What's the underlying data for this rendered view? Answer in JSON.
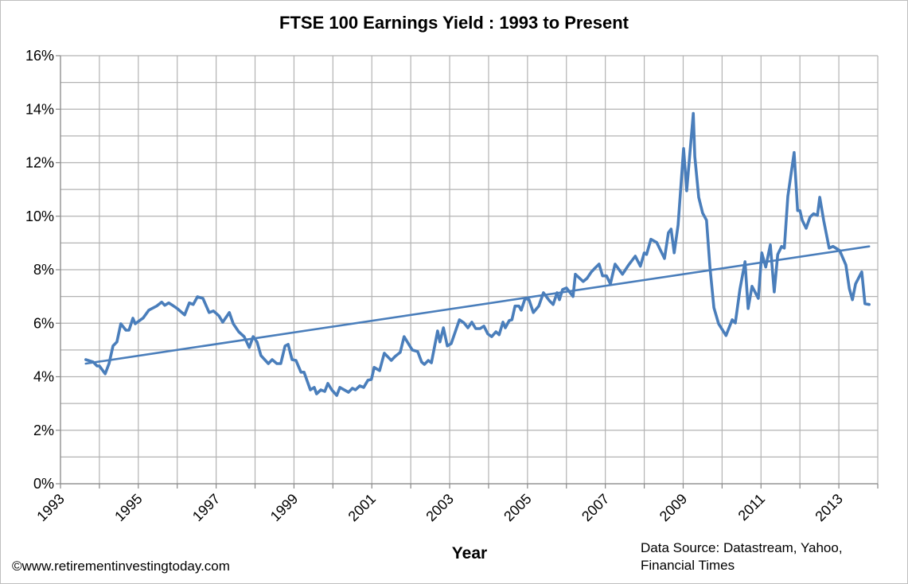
{
  "chart_data": {
    "type": "line",
    "title": "FTSE 100 Earnings Yield : 1993 to Present",
    "xlabel": "Year",
    "ylabel": "",
    "xlim": [
      1993,
      2014
    ],
    "ylim": [
      0,
      16
    ],
    "x_tick_labels": [
      "1993",
      "1995",
      "1997",
      "1999",
      "2001",
      "2003",
      "2005",
      "2007",
      "2009",
      "2011",
      "2013"
    ],
    "y_tick_labels": [
      "0%",
      "2%",
      "4%",
      "6%",
      "8%",
      "10%",
      "12%",
      "14%",
      "16%"
    ],
    "grid": true,
    "legend": "none",
    "series": [
      {
        "color": "#4a7ebb",
        "x": [
          1993.65,
          1993.84,
          1993.94,
          1994.0,
          1994.15,
          1994.25,
          1994.35,
          1994.45,
          1994.55,
          1994.68,
          1994.76,
          1994.86,
          1994.92,
          1995.06,
          1995.12,
          1995.27,
          1995.47,
          1995.6,
          1995.68,
          1995.78,
          1995.88,
          1996.0,
          1996.19,
          1996.31,
          1996.41,
          1996.52,
          1996.66,
          1996.82,
          1996.93,
          1997.07,
          1997.17,
          1997.34,
          1997.44,
          1997.58,
          1997.72,
          1997.85,
          1997.95,
          1998.05,
          1998.15,
          1998.34,
          1998.44,
          1998.56,
          1998.66,
          1998.77,
          1998.85,
          1998.95,
          1999.05,
          1999.18,
          1999.26,
          1999.42,
          1999.52,
          1999.58,
          1999.69,
          1999.79,
          1999.87,
          1999.97,
          2000.1,
          2000.18,
          2000.4,
          2000.5,
          2000.58,
          2000.69,
          2000.79,
          2000.9,
          2000.99,
          2001.06,
          2001.2,
          2001.32,
          2001.5,
          2001.6,
          2001.73,
          2001.83,
          2002.04,
          2002.18,
          2002.28,
          2002.35,
          2002.45,
          2002.53,
          2002.69,
          2002.75,
          2002.84,
          2002.94,
          2003.04,
          2003.25,
          2003.37,
          2003.47,
          2003.57,
          2003.67,
          2003.78,
          2003.88,
          2003.98,
          2004.08,
          2004.19,
          2004.27,
          2004.37,
          2004.43,
          2004.53,
          2004.6,
          2004.68,
          2004.78,
          2004.84,
          2004.94,
          2005.04,
          2005.15,
          2005.29,
          2005.41,
          2005.56,
          2005.66,
          2005.76,
          2005.82,
          2005.9,
          2006.0,
          2006.17,
          2006.23,
          2006.43,
          2006.53,
          2006.64,
          2006.74,
          2006.84,
          2006.93,
          2007.03,
          2007.13,
          2007.25,
          2007.44,
          2007.6,
          2007.77,
          2007.9,
          2008.0,
          2008.06,
          2008.17,
          2008.32,
          2008.52,
          2008.62,
          2008.69,
          2008.77,
          2008.87,
          2009.01,
          2009.09,
          2009.26,
          2009.3,
          2009.4,
          2009.5,
          2009.6,
          2009.69,
          2009.79,
          2009.91,
          2010.1,
          2010.26,
          2010.34,
          2010.46,
          2010.59,
          2010.67,
          2010.77,
          2010.93,
          2011.02,
          2011.12,
          2011.24,
          2011.34,
          2011.43,
          2011.53,
          2011.6,
          2011.69,
          2011.85,
          2011.94,
          2012.0,
          2012.06,
          2012.16,
          2012.26,
          2012.35,
          2012.45,
          2012.51,
          2012.61,
          2012.75,
          2012.85,
          2013.02,
          2013.18,
          2013.27,
          2013.35,
          2013.43,
          2013.59,
          2013.67,
          2013.78
        ],
        "y": [
          4.64,
          4.55,
          4.4,
          4.4,
          4.11,
          4.5,
          5.15,
          5.3,
          5.98,
          5.74,
          5.74,
          6.19,
          5.98,
          6.13,
          6.19,
          6.49,
          6.64,
          6.79,
          6.67,
          6.76,
          6.67,
          6.55,
          6.31,
          6.76,
          6.7,
          6.99,
          6.93,
          6.4,
          6.46,
          6.28,
          6.04,
          6.4,
          5.98,
          5.68,
          5.5,
          5.09,
          5.5,
          5.3,
          4.79,
          4.49,
          4.64,
          4.49,
          4.49,
          5.15,
          5.21,
          4.64,
          4.61,
          4.17,
          4.17,
          3.51,
          3.6,
          3.36,
          3.51,
          3.45,
          3.75,
          3.51,
          3.3,
          3.6,
          3.42,
          3.57,
          3.51,
          3.66,
          3.6,
          3.87,
          3.9,
          4.35,
          4.23,
          4.88,
          4.61,
          4.76,
          4.91,
          5.5,
          5.0,
          4.94,
          4.55,
          4.46,
          4.61,
          4.52,
          5.71,
          5.3,
          5.83,
          5.15,
          5.24,
          6.13,
          6.01,
          5.83,
          6.04,
          5.8,
          5.8,
          5.89,
          5.6,
          5.5,
          5.68,
          5.57,
          6.04,
          5.83,
          6.1,
          6.13,
          6.64,
          6.64,
          6.49,
          6.93,
          6.88,
          6.4,
          6.64,
          7.14,
          6.85,
          6.7,
          7.14,
          6.88,
          7.26,
          7.32,
          7.0,
          7.83,
          7.56,
          7.68,
          7.92,
          8.07,
          8.21,
          7.77,
          7.77,
          7.47,
          8.21,
          7.83,
          8.18,
          8.51,
          8.13,
          8.63,
          8.57,
          9.14,
          9.02,
          8.42,
          9.38,
          9.52,
          8.63,
          9.67,
          12.53,
          10.95,
          13.84,
          12.23,
          10.71,
          10.12,
          9.85,
          8.07,
          6.58,
          5.98,
          5.54,
          6.13,
          6.01,
          7.29,
          8.3,
          6.55,
          7.38,
          6.93,
          8.63,
          8.1,
          8.93,
          7.17,
          8.57,
          8.87,
          8.81,
          10.74,
          12.38,
          10.21,
          10.21,
          9.85,
          9.55,
          9.97,
          10.09,
          10.03,
          10.71,
          9.85,
          8.81,
          8.87,
          8.72,
          8.18,
          7.29,
          6.88,
          7.47,
          7.92,
          6.73,
          6.7
        ]
      },
      {
        "type": "linear-trendline",
        "color": "#4a7ebb",
        "x": [
          1993.65,
          2013.78
        ],
        "y": [
          4.49,
          8.87
        ]
      }
    ]
  },
  "annotations": {
    "source_line1": "Data Source: Datastream,  Yahoo,",
    "source_line2": "Financial Times",
    "copyright": "©www.retirementinvestingtoday.com"
  }
}
